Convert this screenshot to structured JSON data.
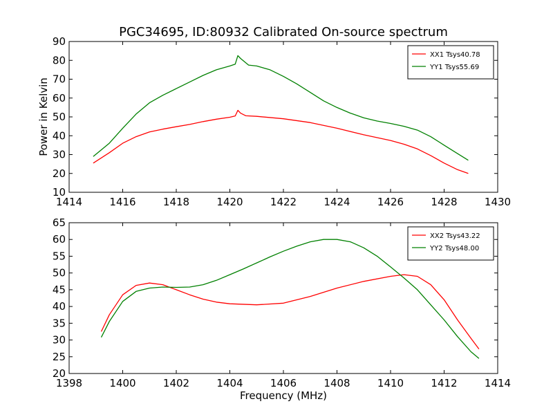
{
  "chart_data": [
    {
      "type": "line",
      "title": "PGC34695, ID:80932 Calibrated On-source spectrum",
      "xlabel": "",
      "ylabel": "Power in Kelvin",
      "xlim": [
        1414,
        1430
      ],
      "ylim": [
        10,
        90
      ],
      "xticks": [
        1414,
        1416,
        1418,
        1420,
        1422,
        1424,
        1426,
        1428,
        1430
      ],
      "yticks": [
        10,
        20,
        30,
        40,
        50,
        60,
        70,
        80,
        90
      ],
      "grid": false,
      "legend": "top-right",
      "series": [
        {
          "name": "XX1 Tsys40.78",
          "color": "#ff0000",
          "x": [
            1414.9,
            1415.5,
            1416.0,
            1416.5,
            1417.0,
            1417.5,
            1418.0,
            1418.5,
            1419.0,
            1419.5,
            1420.0,
            1420.2,
            1420.3,
            1420.4,
            1420.6,
            1421.0,
            1422.0,
            1423.0,
            1424.0,
            1425.0,
            1426.0,
            1426.5,
            1427.0,
            1427.5,
            1428.0,
            1428.5,
            1428.9
          ],
          "y": [
            25.5,
            31.0,
            36.0,
            39.5,
            42.0,
            43.5,
            44.8,
            46.0,
            47.5,
            48.8,
            49.8,
            50.5,
            53.5,
            52.0,
            50.6,
            50.3,
            49.0,
            47.0,
            44.0,
            40.5,
            37.5,
            35.5,
            33.0,
            29.5,
            25.5,
            22.0,
            20.0
          ]
        },
        {
          "name": "YY1 Tsys55.69",
          "color": "#008000",
          "x": [
            1414.9,
            1415.5,
            1416.0,
            1416.5,
            1417.0,
            1417.5,
            1418.0,
            1418.5,
            1419.0,
            1419.5,
            1420.0,
            1420.2,
            1420.3,
            1420.4,
            1420.7,
            1421.0,
            1421.5,
            1422.0,
            1422.5,
            1423.0,
            1423.5,
            1424.0,
            1424.5,
            1425.0,
            1425.5,
            1426.0,
            1426.5,
            1427.0,
            1427.5,
            1428.0,
            1428.5,
            1428.9
          ],
          "y": [
            29.0,
            36.0,
            44.0,
            51.5,
            57.5,
            61.5,
            65.0,
            68.5,
            72.0,
            75.0,
            77.0,
            78.0,
            82.5,
            81.0,
            77.5,
            77.0,
            75.0,
            71.5,
            67.5,
            63.0,
            58.5,
            55.0,
            52.0,
            49.5,
            47.8,
            46.5,
            45.0,
            43.0,
            39.5,
            35.0,
            30.5,
            27.0
          ]
        }
      ]
    },
    {
      "type": "line",
      "title": "",
      "xlabel": "Frequency (MHz)",
      "ylabel": "",
      "xlim": [
        1398,
        1414
      ],
      "ylim": [
        20,
        65
      ],
      "xticks": [
        1398,
        1400,
        1402,
        1404,
        1406,
        1408,
        1410,
        1412,
        1414
      ],
      "yticks": [
        20,
        25,
        30,
        35,
        40,
        45,
        50,
        55,
        60,
        65
      ],
      "grid": false,
      "legend": "top-right",
      "series": [
        {
          "name": "XX2 Tsys43.22",
          "color": "#ff0000",
          "x": [
            1399.2,
            1399.5,
            1400.0,
            1400.5,
            1401.0,
            1401.5,
            1402.0,
            1402.5,
            1403.0,
            1403.5,
            1404.0,
            1405.0,
            1406.0,
            1407.0,
            1408.0,
            1409.0,
            1410.0,
            1410.5,
            1411.0,
            1411.5,
            1412.0,
            1412.5,
            1413.0,
            1413.3
          ],
          "y": [
            32.5,
            37.5,
            43.5,
            46.3,
            47.0,
            46.5,
            45.0,
            43.5,
            42.2,
            41.3,
            40.8,
            40.5,
            41.0,
            43.0,
            45.5,
            47.5,
            49.0,
            49.5,
            49.0,
            46.5,
            42.0,
            36.0,
            30.5,
            27.3
          ]
        },
        {
          "name": "YY2 Tsys48.00",
          "color": "#008000",
          "x": [
            1399.2,
            1399.5,
            1400.0,
            1400.5,
            1401.0,
            1401.5,
            1402.0,
            1402.5,
            1403.0,
            1403.5,
            1404.0,
            1404.5,
            1405.0,
            1405.5,
            1406.0,
            1406.5,
            1407.0,
            1407.5,
            1408.0,
            1408.5,
            1409.0,
            1409.5,
            1410.0,
            1410.5,
            1411.0,
            1411.5,
            1412.0,
            1412.5,
            1413.0,
            1413.3
          ],
          "y": [
            30.8,
            35.5,
            41.5,
            44.5,
            45.5,
            45.8,
            45.7,
            45.8,
            46.5,
            47.8,
            49.5,
            51.2,
            53.0,
            54.8,
            56.5,
            58.0,
            59.3,
            60.0,
            60.0,
            59.3,
            57.5,
            55.0,
            51.8,
            48.5,
            45.0,
            40.5,
            36.0,
            31.0,
            26.5,
            24.5
          ]
        }
      ]
    }
  ]
}
